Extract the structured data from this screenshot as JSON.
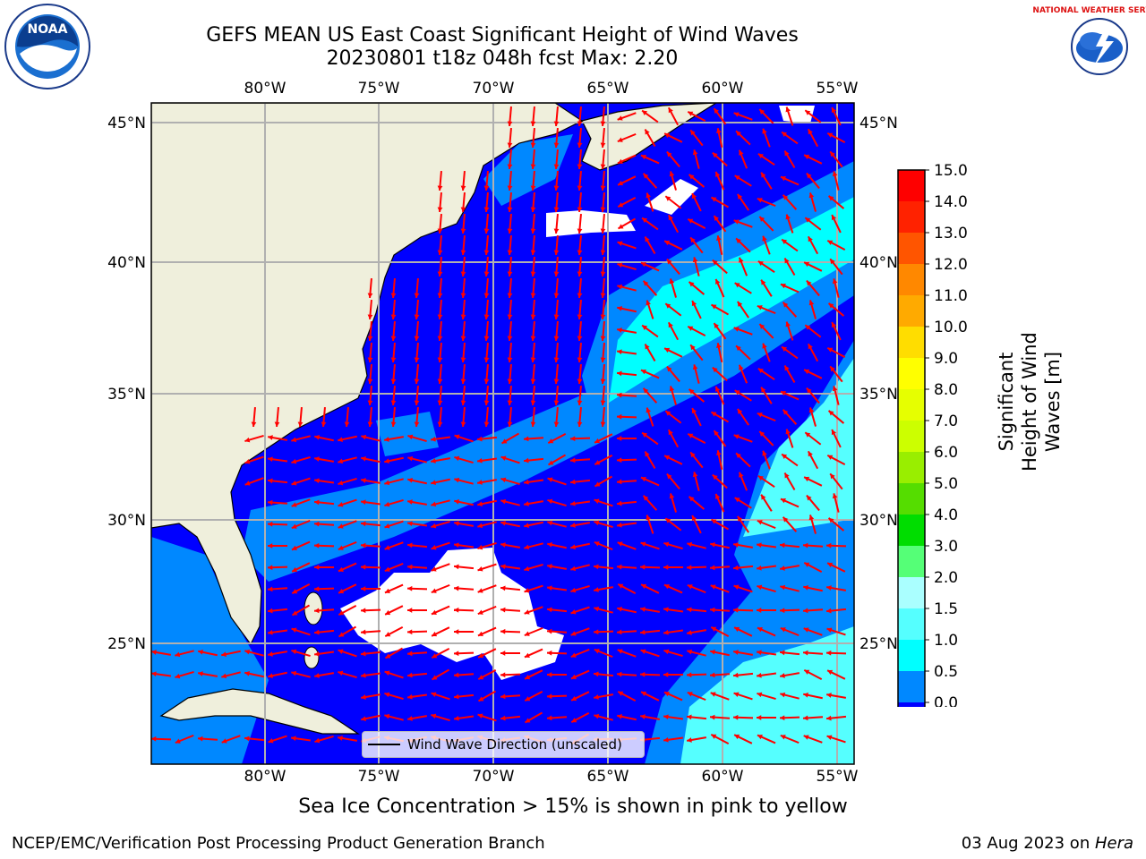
{
  "title_line1": "GEFS MEAN US East Coast Significant Height of Wind Waves",
  "title_line2": "20230801 t18z 048h fcst   Max: 2.20",
  "subtitle": "Sea Ice Concentration > 15% is shown in pink to yellow",
  "footer_left": "NCEP/EMC/Verification Post Processing Product Generation Branch",
  "footer_date": "03 Aug 2023 on ",
  "footer_host": "Hera",
  "noaa_logo_text": "NOAA",
  "nws_logo_text": "NATIONAL WEATHER SERVICE",
  "map": {
    "lon_ticks": [
      "80°W",
      "75°W",
      "70°W",
      "65°W",
      "60°W",
      "55°W"
    ],
    "lat_ticks": [
      "45°N",
      "40°N",
      "35°N",
      "30°N",
      "25°N"
    ],
    "legend_label": "Wind Wave Direction (unscaled)"
  },
  "colorbar": {
    "title": "Significant Height of Wind Waves [m]",
    "title_line1": "Significant Height of Wind",
    "title_line2": "Waves [m]",
    "tick_labels": [
      "15.0",
      "14.0",
      "13.0",
      "12.0",
      "11.0",
      "10.0",
      "9.0",
      "8.0",
      "7.0",
      "6.0",
      "5.0",
      "4.0",
      "3.0",
      "2.0",
      "1.5",
      "1.0",
      "0.5",
      "0.0"
    ],
    "colors": [
      "#fe0000",
      "#ff2200",
      "#ff5500",
      "#ff8800",
      "#ffaa00",
      "#ffdd00",
      "#ffff00",
      "#e6ff00",
      "#ccff00",
      "#99ee00",
      "#55dd00",
      "#00dd00",
      "#55ff77",
      "#aaffff",
      "#55ffff",
      "#00ffff",
      "#0088ff",
      "#0000ff"
    ]
  },
  "colors": {
    "land": "#efefdc",
    "ocean_low": "#0000ff",
    "ocean_mid": "#0088ff",
    "ocean_high": "#00ffff",
    "ocean_highest": "#55ffff",
    "arrow": "#ff0000",
    "grid": "#b0b0b0"
  }
}
